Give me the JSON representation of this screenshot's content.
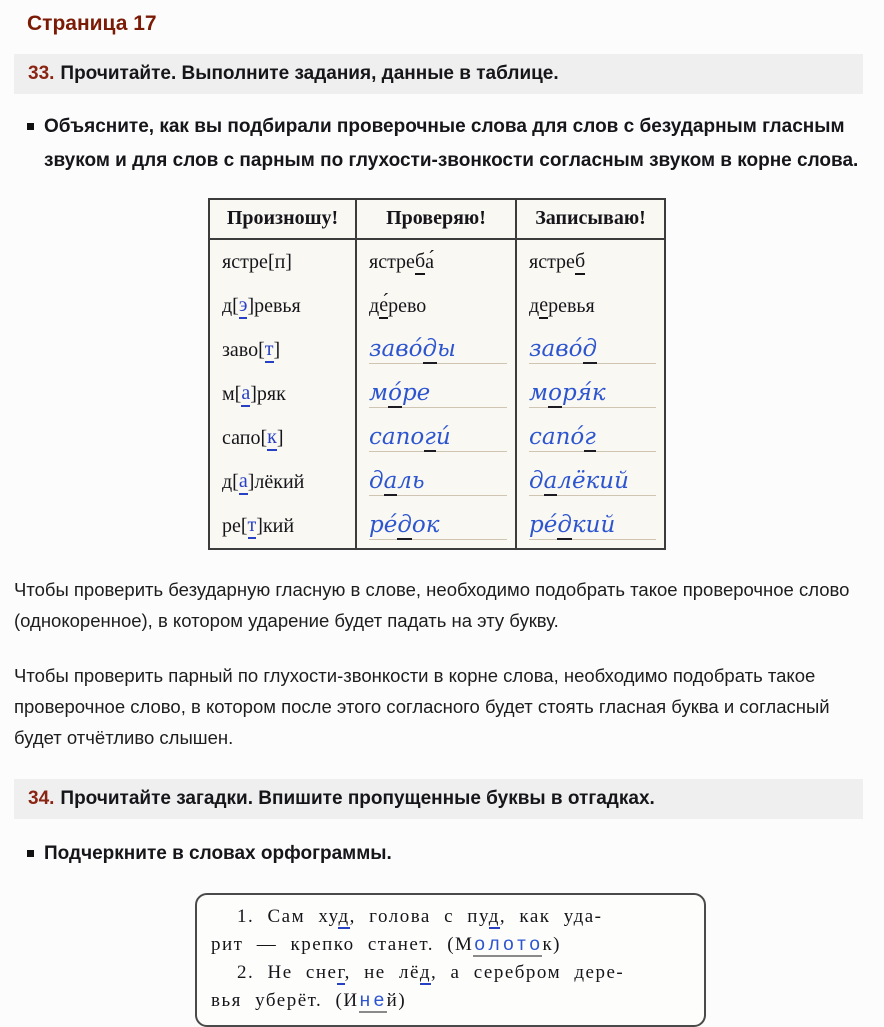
{
  "page": {
    "title": "Страница 17"
  },
  "colors": {
    "title_red": "#7b1b06",
    "task_number_red": "#8a2514",
    "print_blue": "#2840c4",
    "handwriting_blue": "#2d55cf",
    "task_bar_background": "#efefef",
    "table_background": "#f9f8f3",
    "table_border": "#3c3c3c",
    "ruled_line": "#cfc5b2"
  },
  "task33": {
    "number": "33.",
    "text": "Прочитайте. Выполните задания, данные в таблице.",
    "bullet": "Объясните, как вы подбирали проверочные слова для слов с безударным гласным звуком и для слов с парным по глухости-звонкости согласным звуком в корне слова."
  },
  "table": {
    "headers": [
      "Произношу!",
      "Проверяю!",
      "Записываю!"
    ],
    "segment_styles": {
      "p": "printed black",
      "pb": "printed blue letter, blue underline",
      "pu": "printed black letter, black underline",
      "h": "handwritten blue",
      "hu": "handwritten blue letter, dark underline"
    },
    "rows": [
      {
        "handwritten": false,
        "cells": [
          [
            [
              "ястре[п]",
              "p"
            ]
          ],
          [
            [
              "ястре",
              "p"
            ],
            [
              "б",
              "pu"
            ],
            [
              "а́",
              "p"
            ]
          ],
          [
            [
              "ястре",
              "p"
            ],
            [
              "б",
              "pu"
            ]
          ]
        ]
      },
      {
        "handwritten": false,
        "cells": [
          [
            [
              "д[",
              "p"
            ],
            [
              "э",
              "pb"
            ],
            [
              "]ревья",
              "p"
            ]
          ],
          [
            [
              "д",
              "p"
            ],
            [
              "е́",
              "pu"
            ],
            [
              "рево",
              "p"
            ]
          ],
          [
            [
              "д",
              "p"
            ],
            [
              "е",
              "pu"
            ],
            [
              "ревья",
              "p"
            ]
          ]
        ]
      },
      {
        "handwritten": true,
        "cells": [
          [
            [
              "заво[",
              "p"
            ],
            [
              "т",
              "pb"
            ],
            [
              "]",
              "p"
            ]
          ],
          [
            [
              "заво́",
              "h"
            ],
            [
              "д",
              "hu"
            ],
            [
              "ы",
              "h"
            ]
          ],
          [
            [
              "заво́",
              "h"
            ],
            [
              "д",
              "hu"
            ]
          ]
        ]
      },
      {
        "handwritten": true,
        "cells": [
          [
            [
              "м[",
              "p"
            ],
            [
              "а",
              "pb"
            ],
            [
              "]ряк",
              "p"
            ]
          ],
          [
            [
              "м",
              "h"
            ],
            [
              "о́",
              "hu"
            ],
            [
              "ре",
              "h"
            ]
          ],
          [
            [
              "м",
              "h"
            ],
            [
              "о",
              "hu"
            ],
            [
              "ря́к",
              "h"
            ]
          ]
        ]
      },
      {
        "handwritten": true,
        "cells": [
          [
            [
              "сапо[",
              "p"
            ],
            [
              "к",
              "pb"
            ],
            [
              "]",
              "p"
            ]
          ],
          [
            [
              "сапо",
              "h"
            ],
            [
              "г",
              "hu"
            ],
            [
              "и́",
              "h"
            ]
          ],
          [
            [
              "сапо́",
              "h"
            ],
            [
              "г",
              "hu"
            ]
          ]
        ]
      },
      {
        "handwritten": true,
        "cells": [
          [
            [
              "д[",
              "p"
            ],
            [
              "а",
              "pb"
            ],
            [
              "]лёкий",
              "p"
            ]
          ],
          [
            [
              "д",
              "h"
            ],
            [
              "а",
              "hu"
            ],
            [
              "ль",
              "h"
            ]
          ],
          [
            [
              "д",
              "h"
            ],
            [
              "а",
              "hu"
            ],
            [
              "лёкий",
              "h"
            ]
          ]
        ]
      },
      {
        "handwritten": true,
        "cells": [
          [
            [
              "ре[",
              "p"
            ],
            [
              "т",
              "pb"
            ],
            [
              "]кий",
              "p"
            ]
          ],
          [
            [
              "ре́",
              "h"
            ],
            [
              "д",
              "hu"
            ],
            [
              "ок",
              "h"
            ]
          ],
          [
            [
              "ре́",
              "h"
            ],
            [
              "д",
              "hu"
            ],
            [
              "кий",
              "h"
            ]
          ]
        ]
      }
    ]
  },
  "explanations": [
    "Чтобы проверить безударную гласную в слове, необходимо подобрать такое проверочное слово (однокоренное), в котором ударение будет падать на эту букву.",
    "Чтобы проверить парный по глухости-звонкости в корне слова, необходимо подобрать такое проверочное слово, в котором после этого согласного будет стоять гласная буква и согласный будет отчётливо слышен."
  ],
  "task34": {
    "number": "34.",
    "text": "Прочитайте загадки. Впишите пропущенные буквы в отгадках.",
    "bullet": "Подчеркните в словах орфограммы."
  },
  "riddles": {
    "segment_styles": {
      "r": "printed black",
      "rb": "printed black letter, blue underline",
      "rf": "filled-in blue letter on grey blank"
    },
    "lines": [
      {
        "indent": true,
        "segments": [
          [
            "1. Сам ху",
            "r"
          ],
          [
            "д",
            "rb"
          ],
          [
            ", голова с пу",
            "r"
          ],
          [
            "д",
            "rb"
          ],
          [
            ", как уда-",
            "r"
          ]
        ]
      },
      {
        "indent": false,
        "segments": [
          [
            "рит — крепко станет. (М",
            "r"
          ],
          [
            "о",
            "rf"
          ],
          [
            "л",
            "rf"
          ],
          [
            "о",
            "rf"
          ],
          [
            "т",
            "rf"
          ],
          [
            "о",
            "rf"
          ],
          [
            "к)",
            "r"
          ]
        ]
      },
      {
        "indent": true,
        "segments": [
          [
            "2. Не сне",
            "r"
          ],
          [
            "г",
            "rb"
          ],
          [
            ", не лё",
            "r"
          ],
          [
            "д",
            "rb"
          ],
          [
            ", а серебром дере-",
            "r"
          ]
        ]
      },
      {
        "indent": false,
        "segments": [
          [
            "вья уберёт. (И",
            "r"
          ],
          [
            "н",
            "rf"
          ],
          [
            "е",
            "rf"
          ],
          [
            "й)",
            "r"
          ]
        ]
      }
    ]
  }
}
